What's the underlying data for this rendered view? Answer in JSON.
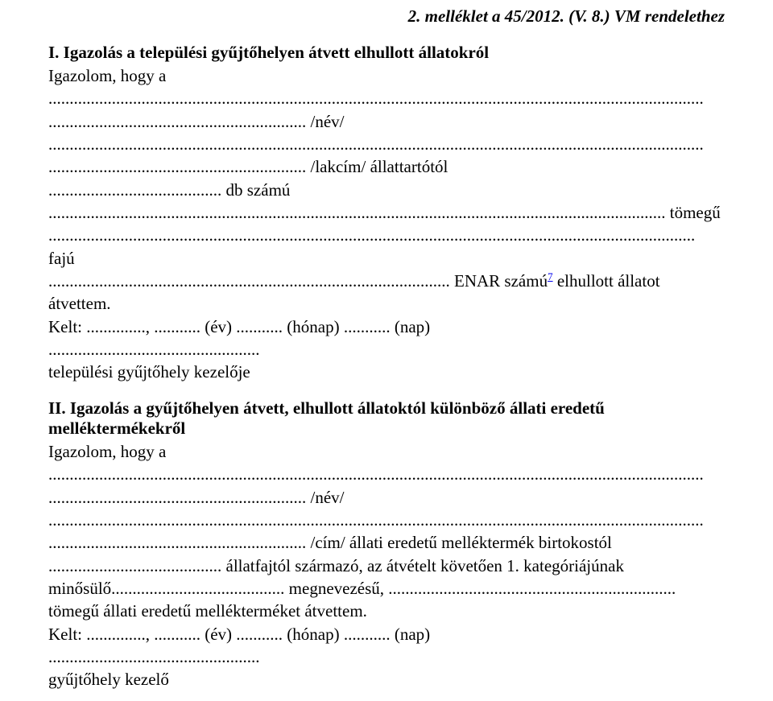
{
  "header": {
    "text": "2. melléklet a 45/2012. (V. 8.) VM rendelethez"
  },
  "section1": {
    "title": "I. Igazolás a települési gyűjtőhelyen átvett elhullott állatokról",
    "intro": "Igazolom, hogy a",
    "dots_full": "...........................................................................................................................................................",
    "nev_line": "............................................................. /név/",
    "lakcim_line": "............................................................. /lakcím/ állattartótól",
    "db_line": "......................................... db számú",
    "tomegu_line": ".................................................................................................................................................. tömegű",
    "faju_line": "......................................................................................................................................................... fajú",
    "enar_prefix": "............................................................................................... ENAR számú",
    "enar_sup": "7",
    "enar_suffix": " elhullott állatot",
    "atvettem": "átvettem.",
    "kelt": "Kelt: .............., ........... (év) ........... (hónap) ........... (nap)",
    "signature_dots": "..................................................",
    "signature_label": "települési gyűjtőhely kezelője"
  },
  "section2": {
    "title": "II. Igazolás a gyűjtőhelyen átvett, elhullott állatoktól különböző állati eredetű melléktermékekről",
    "intro": "Igazolom, hogy a",
    "dots_full": "...........................................................................................................................................................",
    "nev_line": "............................................................. /név/",
    "cim_line": "............................................................. /cím/ állati eredetű melléktermék birtokostól",
    "allatfaj_line": "......................................... állatfajtól származó, az átvételt követően 1. kategóriájúnak",
    "minosulo_line": "minősülő......................................... megnevezésű, ....................................................................",
    "tomegu_line": "tömegű állati eredetű mellékterméket átvettem.",
    "kelt": "Kelt: .............., ........... (év) ........... (hónap) ........... (nap)",
    "signature_dots": "..................................................",
    "signature_label": "gyűjtőhely kezelő"
  }
}
